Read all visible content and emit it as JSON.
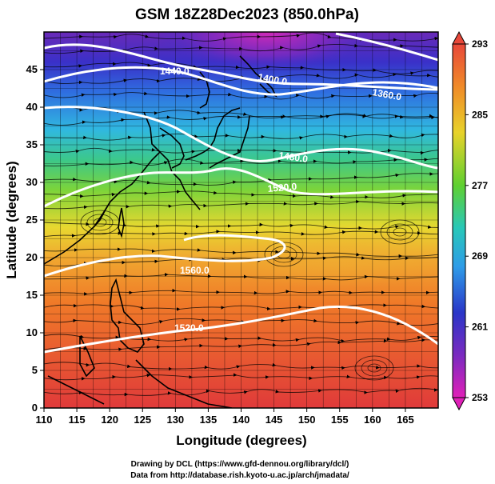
{
  "title": "GSM 18Z28Dec2023 (850.0hPa)",
  "axes": {
    "xlabel": "Longitude (degrees)",
    "ylabel": "Latitude  (degrees)",
    "x_range": [
      110,
      170
    ],
    "y_range": [
      0,
      50
    ],
    "x_ticks": [
      "110",
      "115",
      "120",
      "125",
      "130",
      "135",
      "140",
      "145",
      "150",
      "155",
      "160",
      "165"
    ],
    "y_ticks": [
      "0",
      "5",
      "10",
      "15",
      "20",
      "25",
      "30",
      "35",
      "40",
      "45"
    ]
  },
  "colorbar": {
    "labels": [
      "293",
      "285",
      "277",
      "269",
      "261",
      "253"
    ],
    "colors": [
      "#e8483a",
      "#f08a28",
      "#e8d22a",
      "#5fd030",
      "#28c8b8",
      "#2e9ce8",
      "#2a36c8",
      "#7a2ac0",
      "#e020b8"
    ]
  },
  "contours": [
    {
      "label": "1440.0"
    },
    {
      "label": "1400.0"
    },
    {
      "label": "1360.0"
    },
    {
      "label": "1480.0"
    },
    {
      "label": "1520.0"
    },
    {
      "label": "1560.0"
    },
    {
      "label": "1520.0"
    }
  ],
  "credits": {
    "line1": "Drawing by DCL (https://www.gfd-dennou.org/library/dcl/)",
    "line2": "Data from http://database.rish.kyoto-u.ac.jp/arch/jmadata/"
  }
}
